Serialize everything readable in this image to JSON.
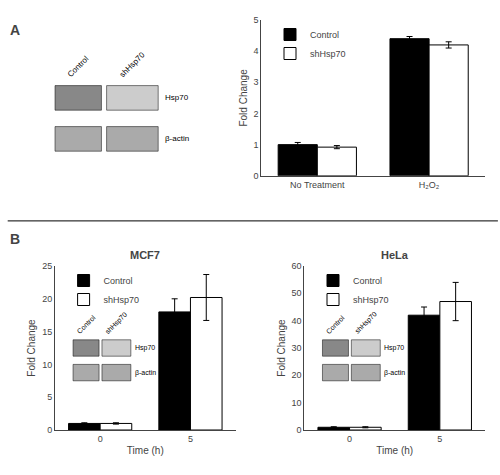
{
  "chart_data": [
    {
      "type": "bar",
      "ylabel": "Fold Change",
      "categories": [
        "No Treatment",
        "H₂O₂"
      ],
      "series": [
        {
          "name": "Control",
          "color": "#000000",
          "values": [
            1.0,
            4.4
          ],
          "errors": [
            0.07,
            0.07
          ]
        },
        {
          "name": "shHsp70",
          "color": "#ffffff",
          "values": [
            0.92,
            4.2
          ],
          "errors": [
            0.05,
            0.1
          ]
        }
      ],
      "ylim": [
        0,
        5
      ],
      "yticks": [
        0,
        1,
        2,
        3,
        4,
        5
      ],
      "grid": false,
      "legend": "upper left",
      "annotations": {
        "panel_label": "A",
        "blot_lanes": [
          "Control",
          "shHsp70"
        ],
        "blot_bands": [
          "Hsp70",
          "β-actin"
        ]
      }
    },
    {
      "type": "bar",
      "title": "MCF7",
      "xlabel": "Time (h)",
      "ylabel": "Fold Change",
      "categories": [
        "0",
        "5"
      ],
      "series": [
        {
          "name": "Control",
          "color": "#000000",
          "values": [
            1.0,
            18.0
          ],
          "errors": [
            0.1,
            2.0
          ]
        },
        {
          "name": "shHsp70",
          "color": "#ffffff",
          "values": [
            1.0,
            20.2
          ],
          "errors": [
            0.1,
            3.5
          ]
        }
      ],
      "ylim": [
        0,
        25
      ],
      "yticks": [
        0,
        5,
        10,
        15,
        20,
        25
      ],
      "grid": false,
      "legend": "upper left",
      "annotations": {
        "panel_label": "B",
        "blot_lanes": [
          "Control",
          "shHsp70"
        ],
        "blot_bands": [
          "Hsp70",
          "β-actin"
        ]
      }
    },
    {
      "type": "bar",
      "title": "HeLa",
      "xlabel": "Time (h)",
      "ylabel": "Fold Change",
      "categories": [
        "0",
        "5"
      ],
      "series": [
        {
          "name": "Control",
          "color": "#000000",
          "values": [
            1.0,
            42.0
          ],
          "errors": [
            0.2,
            3.0
          ]
        },
        {
          "name": "shHsp70",
          "color": "#ffffff",
          "values": [
            1.0,
            47.0
          ],
          "errors": [
            0.2,
            7.0
          ]
        }
      ],
      "ylim": [
        0,
        60
      ],
      "yticks": [
        0,
        10,
        20,
        30,
        40,
        50,
        60
      ],
      "grid": false,
      "legend": "upper left",
      "annotations": {
        "blot_lanes": [
          "Control",
          "shHsp70"
        ],
        "blot_bands": [
          "Hsp70",
          "β-actin"
        ]
      }
    }
  ]
}
